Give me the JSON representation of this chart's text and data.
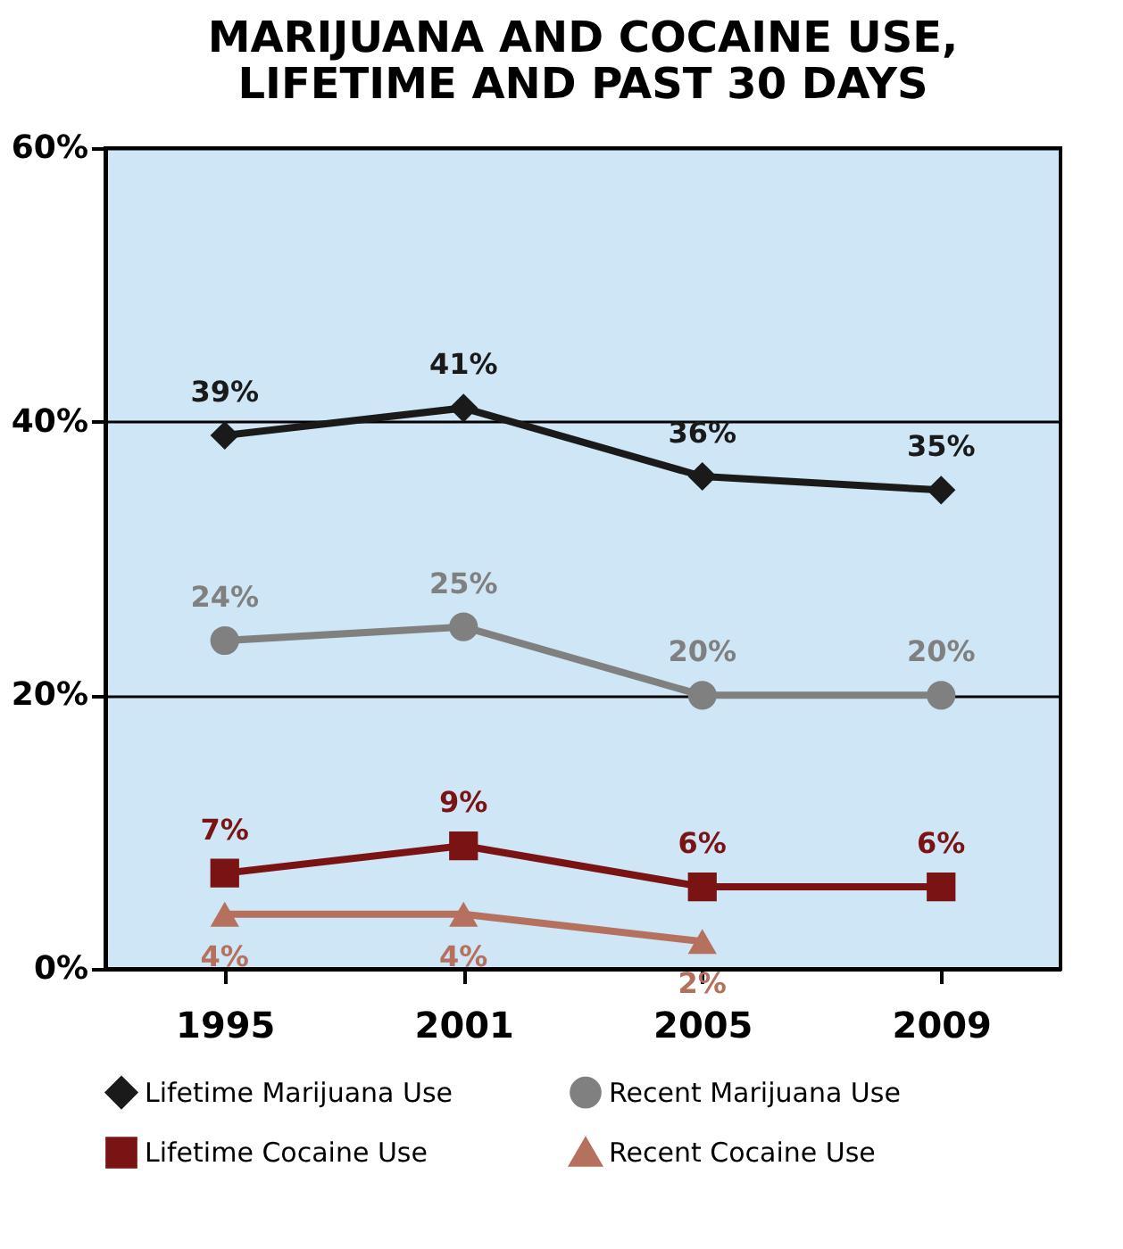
{
  "chart_data": {
    "type": "line",
    "title": [
      "MARIJUANA AND COCAINE USE,",
      "LIFETIME AND PAST 30 DAYS"
    ],
    "categories": [
      "1995",
      "2001",
      "2005",
      "2009"
    ],
    "series": [
      {
        "name": "Lifetime Marijuana Use",
        "color": "#1a1a1a",
        "marker": "diamond",
        "values": [
          39,
          41,
          36,
          35
        ],
        "value_labels": [
          "39%",
          "41%",
          "36%",
          "35%"
        ]
      },
      {
        "name": "Recent Marijuana Use",
        "color": "#808080",
        "marker": "circle",
        "values": [
          24,
          25,
          20,
          20
        ],
        "value_labels": [
          "24%",
          "25%",
          "20%",
          "20%"
        ]
      },
      {
        "name": "Lifetime Cocaine Use",
        "color": "#7a1414",
        "marker": "square",
        "values": [
          7,
          9,
          6,
          6
        ],
        "value_labels": [
          "7%",
          "9%",
          "6%",
          "6%"
        ]
      },
      {
        "name": "Recent Cocaine Use",
        "color": "#b5705e",
        "marker": "triangle",
        "values": [
          4,
          4,
          2,
          null
        ],
        "value_labels": [
          "4%",
          "4%",
          "2%",
          null
        ]
      }
    ],
    "ylim": [
      0,
      60
    ],
    "yticks": [
      {
        "value": 0,
        "label": "0%"
      },
      {
        "value": 20,
        "label": "20%"
      },
      {
        "value": 40,
        "label": "40%"
      },
      {
        "value": 60,
        "label": "60%"
      }
    ],
    "grid": "y",
    "legend": "bottom",
    "line_style": "solid"
  }
}
